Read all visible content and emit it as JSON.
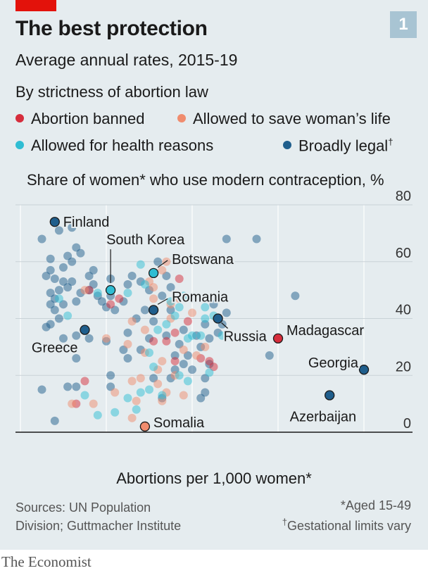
{
  "header": {
    "badge": "1",
    "title": "The best protection",
    "subtitle": "Average annual rates, 2015-19"
  },
  "legend": {
    "title": "By strictness of abortion law",
    "items": [
      {
        "label": "Abortion banned",
        "color": "#d62d3c"
      },
      {
        "label": "Allowed to save woman’s life",
        "color": "#f08c6e"
      },
      {
        "label": "Allowed for health reasons",
        "color": "#2fbdd3"
      },
      {
        "label": "Broadly legal",
        "color": "#1f5e8c",
        "mark": "†"
      }
    ]
  },
  "footer": {
    "source": "Sources: UN Population Division; Guttmacher Institute",
    "note1": "*Aged 15-49",
    "note2_mark": "†",
    "note2": "Gestational limits vary",
    "brand": "The Economist"
  },
  "chart_data": {
    "type": "scatter",
    "xlabel": "Abortions per 1,000 women*",
    "ylabel": "Share of women* who use modern contraception, %",
    "xlim": [
      -2,
      92
    ],
    "ylim": [
      0,
      80
    ],
    "xticks": [
      "0",
      "20",
      "40",
      "60",
      "80"
    ],
    "yticks": [
      "80",
      "60",
      "40",
      "20",
      "0"
    ],
    "grid": true,
    "categories": [
      "Abortion banned",
      "Allowed to save woman’s life",
      "Allowed for health reasons",
      "Broadly legal"
    ],
    "colors": [
      "#d62d3c",
      "#f08c6e",
      "#2fbdd3",
      "#1f5e8c"
    ],
    "highlighted": [
      {
        "label": "Finland",
        "x": 8,
        "y": 74,
        "cat": 3
      },
      {
        "label": "South Korea",
        "x": 21,
        "y": 50,
        "cat": 2
      },
      {
        "label": "Botswana",
        "x": 31,
        "y": 56,
        "cat": 2
      },
      {
        "label": "Romania",
        "x": 31,
        "y": 43,
        "cat": 3
      },
      {
        "label": "Russia",
        "x": 46,
        "y": 40,
        "cat": 3
      },
      {
        "label": "Greece",
        "x": 15,
        "y": 36,
        "cat": 3
      },
      {
        "label": "Madagascar",
        "x": 60,
        "y": 33,
        "cat": 0
      },
      {
        "label": "Georgia",
        "x": 80,
        "y": 22,
        "cat": 3
      },
      {
        "label": "Azerbaijan",
        "x": 72,
        "y": 13,
        "cat": 3
      },
      {
        "label": "Somalia",
        "x": 29,
        "y": 2,
        "cat": 1
      }
    ],
    "points": [
      [
        5,
        68,
        3
      ],
      [
        9,
        71,
        3
      ],
      [
        12,
        72,
        3
      ],
      [
        13,
        65,
        3
      ],
      [
        14,
        63,
        3
      ],
      [
        7,
        61,
        3
      ],
      [
        11,
        62,
        3
      ],
      [
        12,
        60,
        3
      ],
      [
        10,
        58,
        3
      ],
      [
        7,
        57,
        3
      ],
      [
        6,
        55,
        3
      ],
      [
        8,
        54,
        3
      ],
      [
        10,
        53,
        3
      ],
      [
        12,
        53,
        3
      ],
      [
        11,
        51,
        3
      ],
      [
        9,
        50,
        3
      ],
      [
        7,
        49,
        3
      ],
      [
        8,
        47,
        3
      ],
      [
        10,
        45,
        3
      ],
      [
        7,
        45,
        3
      ],
      [
        13,
        46,
        3
      ],
      [
        14,
        49,
        3
      ],
      [
        16,
        50,
        3
      ],
      [
        18,
        48,
        3
      ],
      [
        17,
        57,
        3
      ],
      [
        16,
        55,
        3
      ],
      [
        17,
        52,
        3
      ],
      [
        19,
        46,
        3
      ],
      [
        21,
        48,
        3
      ],
      [
        20,
        44,
        3
      ],
      [
        22,
        43,
        3
      ],
      [
        24,
        46,
        3
      ],
      [
        25,
        52,
        3
      ],
      [
        26,
        55,
        3
      ],
      [
        28,
        53,
        3
      ],
      [
        30,
        50,
        3
      ],
      [
        33,
        48,
        3
      ],
      [
        35,
        51,
        3
      ],
      [
        34,
        55,
        3
      ],
      [
        32,
        60,
        3
      ],
      [
        21,
        54,
        3
      ],
      [
        8,
        43,
        3
      ],
      [
        7,
        38,
        3
      ],
      [
        6,
        37,
        3
      ],
      [
        13,
        34,
        3
      ],
      [
        16,
        33,
        3
      ],
      [
        20,
        32,
        3
      ],
      [
        25,
        35,
        3
      ],
      [
        28,
        29,
        3
      ],
      [
        30,
        33,
        3
      ],
      [
        34,
        34,
        3
      ],
      [
        37,
        31,
        3
      ],
      [
        39,
        27,
        3
      ],
      [
        42,
        30,
        3
      ],
      [
        44,
        33,
        3
      ],
      [
        46,
        35,
        3
      ],
      [
        43,
        38,
        3
      ],
      [
        45,
        45,
        3
      ],
      [
        48,
        42,
        3
      ],
      [
        47,
        38,
        3
      ],
      [
        48,
        68,
        3
      ],
      [
        55,
        68,
        3
      ],
      [
        64,
        48,
        3
      ],
      [
        58,
        27,
        3
      ],
      [
        13,
        26,
        3
      ],
      [
        5,
        15,
        3
      ],
      [
        8,
        4,
        3
      ],
      [
        11,
        16,
        3
      ],
      [
        13,
        16,
        3
      ],
      [
        21,
        16,
        3
      ],
      [
        21,
        20,
        3
      ],
      [
        31,
        19,
        3
      ],
      [
        35,
        19,
        3
      ],
      [
        36,
        22,
        3
      ],
      [
        40,
        22,
        3
      ],
      [
        43,
        19,
        3
      ],
      [
        42,
        12,
        3
      ],
      [
        43,
        14,
        3
      ],
      [
        44,
        24,
        3
      ],
      [
        38,
        24,
        3
      ],
      [
        25,
        26,
        3
      ],
      [
        35,
        43,
        3
      ],
      [
        38,
        36,
        3
      ],
      [
        29,
        43,
        3
      ],
      [
        31,
        39,
        3
      ],
      [
        27,
        40,
        3
      ],
      [
        24,
        29,
        3
      ],
      [
        33,
        12,
        3
      ],
      [
        36,
        27,
        3
      ],
      [
        41,
        34,
        3
      ],
      [
        10,
        33,
        3
      ],
      [
        9,
        40,
        3
      ],
      [
        16,
        50,
        0
      ],
      [
        21,
        45,
        0
      ],
      [
        23,
        47,
        0
      ],
      [
        31,
        32,
        0
      ],
      [
        34,
        32,
        0
      ],
      [
        36,
        35,
        0
      ],
      [
        37,
        54,
        0
      ],
      [
        39,
        39,
        0
      ],
      [
        36,
        25,
        0
      ],
      [
        42,
        26,
        0
      ],
      [
        44,
        25,
        0
      ],
      [
        45,
        23,
        0
      ],
      [
        15,
        18,
        0
      ],
      [
        13,
        10,
        0
      ],
      [
        15,
        50,
        1
      ],
      [
        20,
        33,
        1
      ],
      [
        26,
        39,
        1
      ],
      [
        31,
        51,
        1
      ],
      [
        33,
        57,
        1
      ],
      [
        35,
        45,
        1
      ],
      [
        37,
        47,
        1
      ],
      [
        40,
        42,
        1
      ],
      [
        38,
        29,
        1
      ],
      [
        33,
        25,
        1
      ],
      [
        36,
        20,
        1
      ],
      [
        32,
        17,
        1
      ],
      [
        34,
        14,
        1
      ],
      [
        33,
        11,
        1
      ],
      [
        28,
        19,
        1
      ],
      [
        26,
        18,
        1
      ],
      [
        25,
        31,
        1
      ],
      [
        29,
        36,
        1
      ],
      [
        31,
        47,
        1
      ],
      [
        35,
        40,
        1
      ],
      [
        12,
        10,
        1
      ],
      [
        17,
        10,
        1
      ],
      [
        22,
        14,
        1
      ],
      [
        26,
        5,
        1
      ],
      [
        30,
        53,
        1
      ],
      [
        32,
        22,
        1
      ],
      [
        41,
        27,
        1
      ],
      [
        43,
        30,
        1
      ],
      [
        29,
        28,
        1
      ],
      [
        34,
        60,
        1
      ],
      [
        27,
        11,
        1
      ],
      [
        38,
        13,
        1
      ],
      [
        9,
        47,
        2
      ],
      [
        11,
        41,
        2
      ],
      [
        18,
        49,
        2
      ],
      [
        25,
        49,
        2
      ],
      [
        28,
        59,
        2
      ],
      [
        29,
        52,
        2
      ],
      [
        35,
        46,
        2
      ],
      [
        37,
        44,
        2
      ],
      [
        40,
        34,
        2
      ],
      [
        42,
        34,
        2
      ],
      [
        43,
        40,
        2
      ],
      [
        45,
        41,
        2
      ],
      [
        47,
        34,
        2
      ],
      [
        44,
        21,
        2
      ],
      [
        39,
        18,
        2
      ],
      [
        37,
        20,
        2
      ],
      [
        31,
        23,
        2
      ],
      [
        30,
        28,
        2
      ],
      [
        32,
        36,
        2
      ],
      [
        34,
        38,
        2
      ],
      [
        22,
        7,
        2
      ],
      [
        18,
        6,
        2
      ],
      [
        15,
        13,
        2
      ],
      [
        25,
        12,
        2
      ],
      [
        28,
        14,
        2
      ],
      [
        30,
        15,
        2
      ],
      [
        33,
        13,
        2
      ],
      [
        27,
        8,
        2
      ],
      [
        36,
        41,
        2
      ],
      [
        39,
        33,
        2
      ],
      [
        43,
        44,
        2
      ],
      [
        38,
        48,
        2
      ]
    ]
  }
}
